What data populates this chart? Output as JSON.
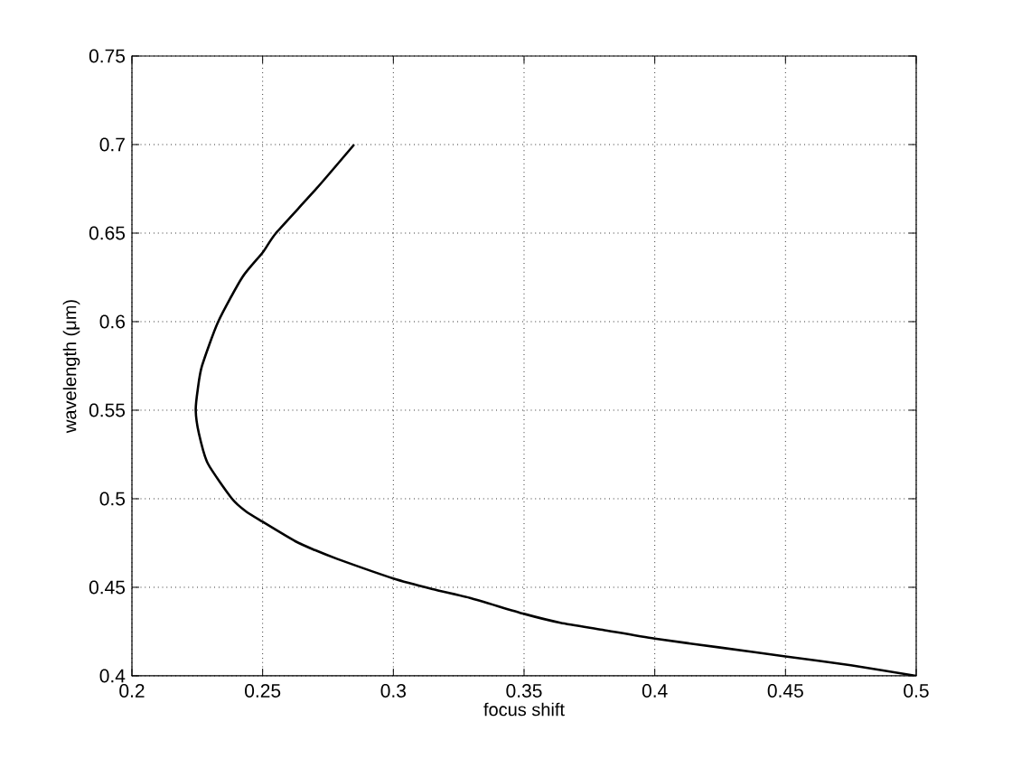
{
  "chart_data": {
    "type": "line",
    "xlabel": "focus shift",
    "ylabel": "wavelength (μm)",
    "x": [
      0.285,
      0.2705,
      0.2551,
      0.25,
      0.2422,
      0.233,
      0.2268,
      0.2252,
      0.2244,
      0.2256,
      0.229,
      0.2383,
      0.2435,
      0.25,
      0.2625,
      0.27,
      0.2786,
      0.3,
      0.315,
      0.3293,
      0.35,
      0.3639,
      0.38,
      0.4,
      0.425,
      0.45,
      0.475,
      0.5
    ],
    "values": [
      0.7,
      0.675,
      0.65,
      0.639,
      0.625,
      0.6,
      0.575,
      0.562,
      0.55,
      0.537,
      0.52,
      0.5,
      0.493,
      0.487,
      0.476,
      0.471,
      0.466,
      0.455,
      0.449,
      0.444,
      0.435,
      0.43,
      0.426,
      0.421,
      0.416,
      0.411,
      0.406,
      0.4
    ],
    "color": "#000000",
    "line_style": "solid",
    "grid": true,
    "xlim": [
      0.2,
      0.5
    ],
    "ylim": [
      0.4,
      0.75
    ],
    "xticks": [
      0.2,
      0.25,
      0.3,
      0.35,
      0.4,
      0.45,
      0.5
    ],
    "yticks": [
      0.4,
      0.45,
      0.5,
      0.55,
      0.6,
      0.65,
      0.7,
      0.75
    ]
  }
}
